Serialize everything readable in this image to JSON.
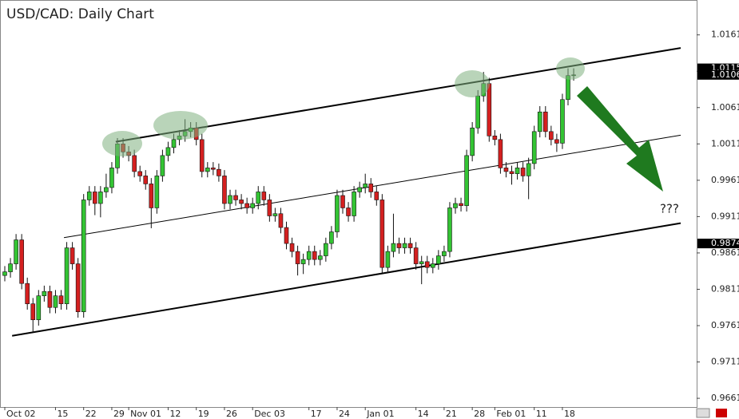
{
  "chart_data": {
    "type": "candlestick",
    "title": "USD/CAD: Daily Chart",
    "annotation": "???",
    "up_color": "#33c433",
    "down_color": "#d42020",
    "categories": [
      "Oct 02",
      null,
      null,
      null,
      null,
      null,
      null,
      null,
      null,
      "15",
      null,
      null,
      null,
      null,
      "22",
      null,
      null,
      null,
      null,
      "29",
      null,
      null,
      "Nov 01",
      null,
      null,
      null,
      null,
      null,
      null,
      "12",
      null,
      null,
      null,
      null,
      "19",
      null,
      null,
      null,
      null,
      "26",
      null,
      null,
      null,
      null,
      "Dec 03",
      null,
      null,
      null,
      null,
      null,
      null,
      null,
      null,
      null,
      "17",
      null,
      null,
      null,
      null,
      "24",
      null,
      null,
      null,
      null,
      "Jan 01",
      null,
      null,
      null,
      null,
      null,
      null,
      null,
      null,
      "14",
      null,
      null,
      null,
      null,
      "21",
      null,
      null,
      null,
      null,
      "28",
      null,
      null,
      null,
      "Feb 01",
      null,
      null,
      null,
      null,
      null,
      null,
      "11",
      null,
      null,
      null,
      null,
      "18",
      null,
      null
    ],
    "open": [
      0.983,
      0.9835,
      0.9846,
      0.9879,
      0.9819,
      0.9791,
      0.9769,
      0.9802,
      0.9808,
      0.9786,
      0.9802,
      0.9791,
      0.9868,
      0.9846,
      0.978,
      0.9934,
      0.9945,
      0.9929,
      0.9945,
      0.9951,
      0.9978,
      1.0011,
      1.0,
      0.9995,
      0.9973,
      0.9967,
      0.9956,
      0.9923,
      0.9967,
      0.9995,
      1.0006,
      1.0017,
      1.0022,
      1.0028,
      1.0033,
      1.0017,
      0.9973,
      0.9978,
      0.9976,
      0.9967,
      0.9929,
      0.994,
      0.9934,
      0.9929,
      0.9923,
      0.9929,
      0.9945,
      0.9934,
      0.9912,
      0.9915,
      0.9896,
      0.9874,
      0.9863,
      0.9846,
      0.9852,
      0.9863,
      0.9852,
      0.9857,
      0.9874,
      0.989,
      0.994,
      0.9923,
      0.9912,
      0.9945,
      0.9951,
      0.9956,
      0.9945,
      0.9934,
      0.9841,
      0.9863,
      0.9874,
      0.9868,
      0.9874,
      0.9868,
      0.9846,
      0.9849,
      0.9841,
      0.9846,
      0.9857,
      0.9863,
      0.9923,
      0.9929,
      0.9926,
      0.9995,
      1.0033,
      1.0077,
      1.0094,
      1.0022,
      1.0017,
      0.9978,
      0.9973,
      0.997,
      0.9978,
      0.9967,
      0.9984,
      1.0028,
      1.0055,
      1.0028,
      1.0017,
      1.0012,
      1.0072,
      1.0105
    ],
    "high": [
      0.9843,
      0.9854,
      0.9887,
      0.9887,
      0.9827,
      0.9799,
      0.981,
      0.9816,
      0.9816,
      0.981,
      0.981,
      0.9876,
      0.9876,
      0.9854,
      0.9942,
      0.9953,
      0.9953,
      0.9953,
      0.997,
      0.9986,
      1.0019,
      1.0019,
      1.0008,
      1.0003,
      0.9981,
      0.9975,
      0.9964,
      0.9975,
      1.0003,
      1.0014,
      1.0025,
      1.003,
      1.0045,
      1.0041,
      1.0041,
      1.0025,
      0.9986,
      0.9986,
      0.9984,
      0.9975,
      0.9948,
      0.9948,
      0.9942,
      0.9937,
      0.9937,
      0.9953,
      0.9953,
      0.9942,
      0.9923,
      0.9923,
      0.9904,
      0.9882,
      0.9871,
      0.986,
      0.9871,
      0.9871,
      0.9865,
      0.9882,
      0.9898,
      0.9948,
      0.9948,
      0.9931,
      0.9953,
      0.9959,
      0.997,
      0.9964,
      0.9953,
      0.9942,
      0.9871,
      0.9915,
      0.9882,
      0.9882,
      0.9882,
      0.9876,
      0.9857,
      0.9857,
      0.9854,
      0.9865,
      0.9871,
      0.9931,
      0.9937,
      0.9937,
      1.0003,
      1.0041,
      1.0085,
      1.011,
      1.0102,
      1.003,
      1.0025,
      0.9986,
      0.9981,
      0.9986,
      0.9986,
      0.9992,
      1.0036,
      1.0063,
      1.0063,
      1.0036,
      1.0025,
      1.008,
      1.0115,
      1.0115
    ],
    "low": [
      0.9822,
      0.9827,
      0.9838,
      0.9811,
      0.9783,
      0.9752,
      0.9761,
      0.9794,
      0.9778,
      0.9778,
      0.9783,
      0.9783,
      0.9838,
      0.9772,
      0.9772,
      0.9926,
      0.9913,
      0.991,
      0.9937,
      0.9943,
      0.997,
      0.9992,
      0.9987,
      0.9965,
      0.9959,
      0.9948,
      0.9895,
      0.9915,
      0.9959,
      0.9987,
      0.9998,
      1.0009,
      1.0014,
      1.002,
      1.0009,
      0.9965,
      0.9965,
      0.9968,
      0.9959,
      0.9921,
      0.9921,
      0.9926,
      0.9921,
      0.9915,
      0.9915,
      0.9921,
      0.9926,
      0.9904,
      0.9904,
      0.9888,
      0.9866,
      0.9855,
      0.983,
      0.9832,
      0.9844,
      0.9844,
      0.9844,
      0.9849,
      0.9866,
      0.9882,
      0.9915,
      0.9904,
      0.9904,
      0.9937,
      0.9943,
      0.9937,
      0.9926,
      0.9833,
      0.9833,
      0.9855,
      0.986,
      0.986,
      0.986,
      0.9838,
      0.9818,
      0.9833,
      0.9833,
      0.9838,
      0.9849,
      0.9855,
      0.9915,
      0.9918,
      0.9918,
      0.9987,
      1.0025,
      1.0069,
      1.0014,
      1.0009,
      0.997,
      0.9965,
      0.9955,
      0.9962,
      0.9959,
      0.9935,
      0.9976,
      1.002,
      1.002,
      1.0009,
      1.0,
      1.0004,
      1.0064,
      1.0098
    ],
    "close": [
      0.9835,
      0.9846,
      0.9879,
      0.9819,
      0.9791,
      0.9769,
      0.9802,
      0.9808,
      0.9786,
      0.9802,
      0.9791,
      0.9868,
      0.9846,
      0.978,
      0.9934,
      0.9945,
      0.9929,
      0.9945,
      0.9951,
      0.9978,
      1.0011,
      1.0,
      0.9995,
      0.9973,
      0.9967,
      0.9956,
      0.9923,
      0.9967,
      0.9995,
      1.0006,
      1.0017,
      1.0022,
      1.0028,
      1.0033,
      1.0017,
      0.9973,
      0.9978,
      0.9976,
      0.9967,
      0.9929,
      0.994,
      0.9934,
      0.9929,
      0.9923,
      0.9929,
      0.9945,
      0.9934,
      0.9912,
      0.9915,
      0.9896,
      0.9874,
      0.9863,
      0.9846,
      0.9852,
      0.9863,
      0.9852,
      0.9857,
      0.9874,
      0.989,
      0.994,
      0.9923,
      0.9912,
      0.9945,
      0.9951,
      0.9956,
      0.9945,
      0.9934,
      0.9841,
      0.9863,
      0.9874,
      0.9868,
      0.9874,
      0.9868,
      0.9846,
      0.9849,
      0.9841,
      0.9846,
      0.9857,
      0.9863,
      0.9923,
      0.9929,
      0.9926,
      0.9995,
      1.0033,
      1.0077,
      1.0094,
      1.0022,
      1.0017,
      0.9978,
      0.9973,
      0.997,
      0.9978,
      0.9967,
      0.9984,
      1.0028,
      1.0055,
      1.0028,
      1.0017,
      1.0012,
      1.0072,
      1.0105,
      1.0106
    ],
    "ylim": [
      0.9649,
      1.0209
    ],
    "yticks": [
      1.0161,
      1.0111,
      1.0061,
      1.0011,
      0.9961,
      0.9911,
      0.9861,
      0.9811,
      0.9761,
      0.9711,
      0.9661
    ],
    "price_markers": [
      1.0115,
      1.0106,
      0.9874
    ],
    "trendlines": [
      {
        "x": [
          19.7,
          120
        ],
        "y": [
          1.0014,
          1.0143
        ]
      },
      {
        "x": [
          10.5,
          120
        ],
        "y": [
          0.9882,
          1.0023
        ]
      },
      {
        "x": [
          1.3,
          120
        ],
        "y": [
          0.9747,
          0.9902
        ]
      }
    ]
  }
}
